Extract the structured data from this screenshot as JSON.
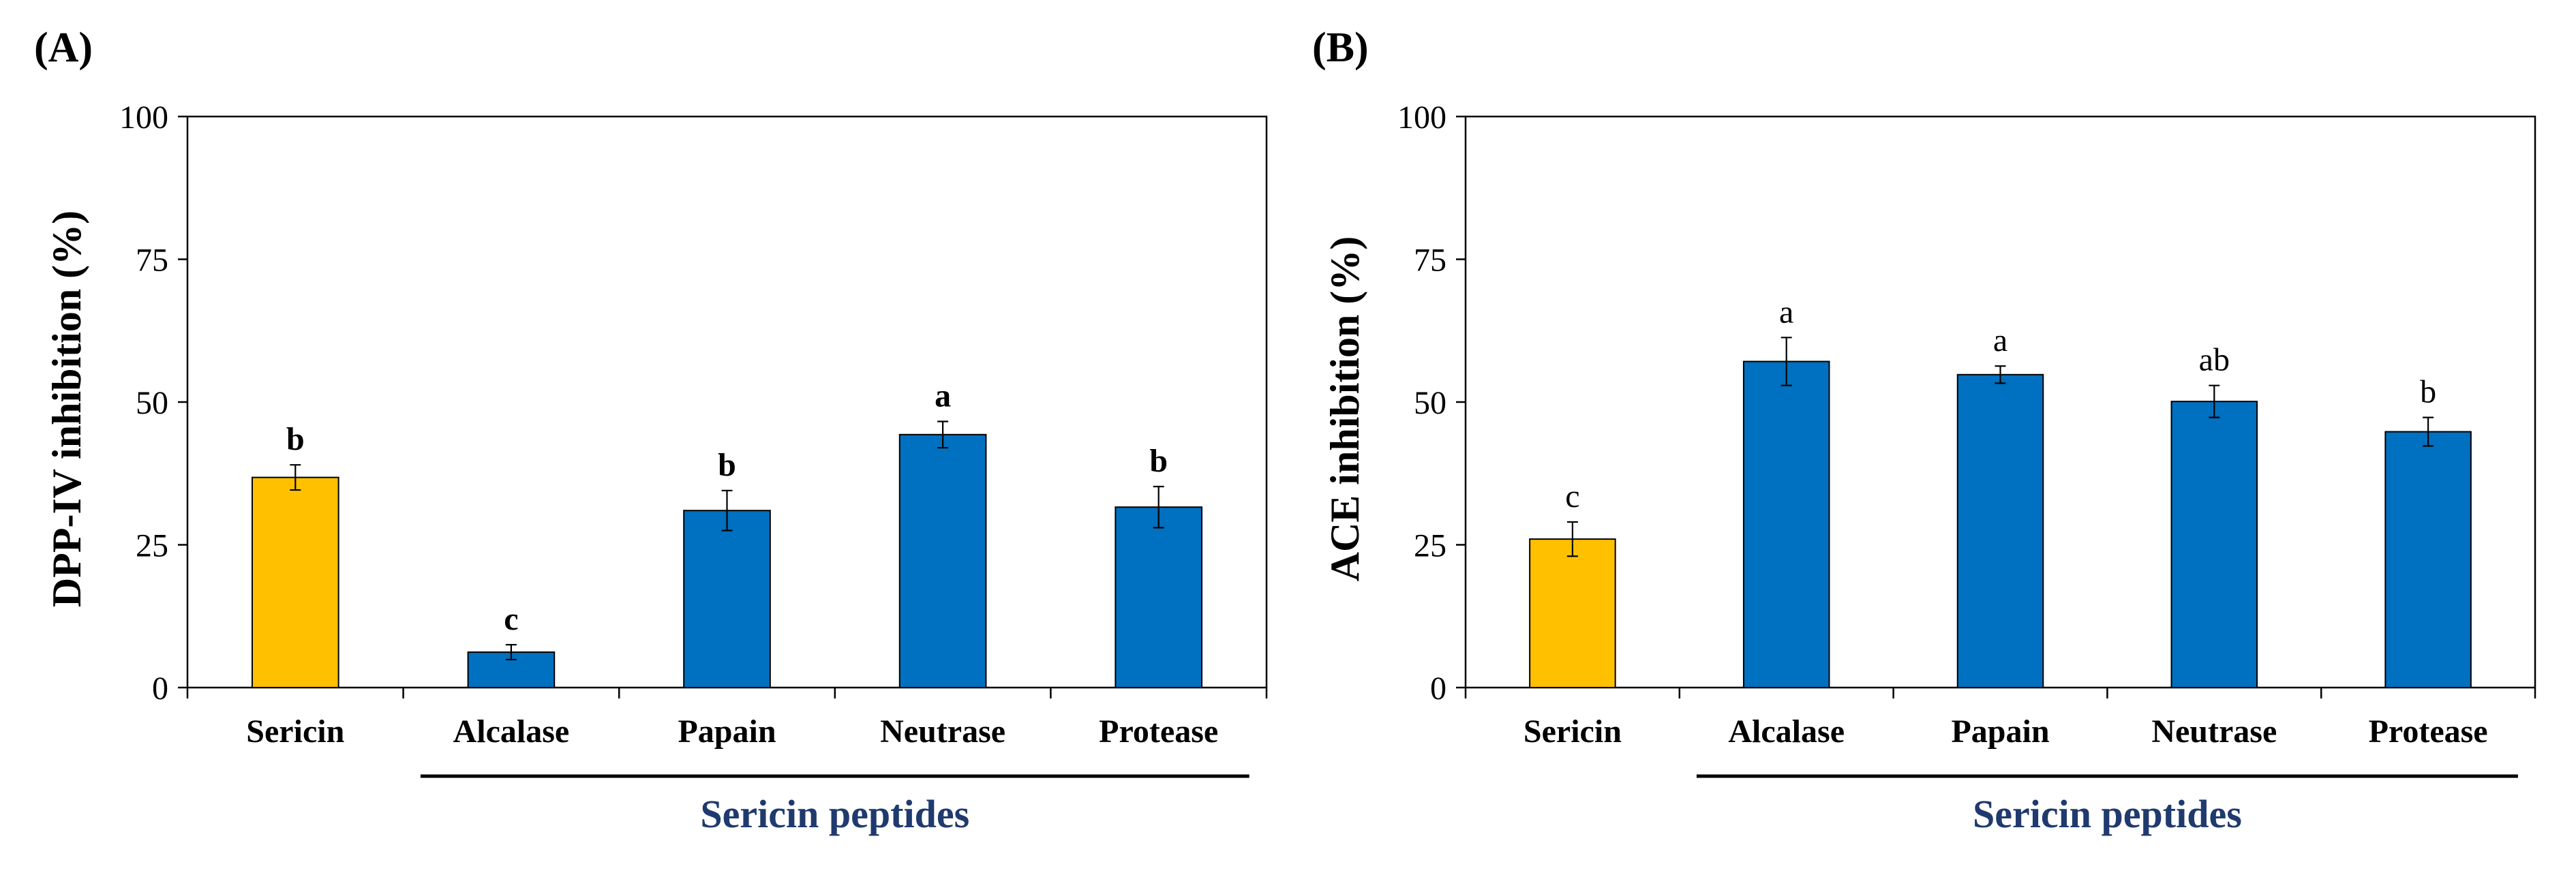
{
  "colors": {
    "sericin": "#FFC000",
    "peptides": "#0070C0",
    "group_label": "#1F3A6E",
    "axis": "#000000"
  },
  "chart_data": [
    {
      "type": "bar",
      "panel_label": "(A)",
      "categories": [
        "Sericin",
        "Alcalase",
        "Papain",
        "Neutrase",
        "Protease"
      ],
      "values": [
        36.8,
        6.2,
        31.0,
        44.3,
        31.6
      ],
      "errors": [
        2.2,
        1.3,
        3.5,
        2.3,
        3.6
      ],
      "significance": [
        "b",
        "c",
        "b",
        "a",
        "b"
      ],
      "sig_bold": true,
      "bar_colors": [
        "#FFC000",
        "#0070C0",
        "#0070C0",
        "#0070C0",
        "#0070C0"
      ],
      "ylabel": "DPP-IV inhibition (%)",
      "ylim": [
        0,
        100
      ],
      "yticks": [
        0,
        25,
        50,
        75,
        100
      ],
      "group_label": "Sericin peptides",
      "grid": false
    },
    {
      "type": "bar",
      "panel_label": "(B)",
      "categories": [
        "Sericin",
        "Alcalase",
        "Papain",
        "Neutrase",
        "Protease"
      ],
      "values": [
        26.0,
        57.1,
        54.8,
        50.1,
        44.8
      ],
      "errors": [
        3.0,
        4.2,
        1.5,
        2.8,
        2.5
      ],
      "significance": [
        "c",
        "a",
        "a",
        "ab",
        "b"
      ],
      "sig_bold": false,
      "bar_colors": [
        "#FFC000",
        "#0070C0",
        "#0070C0",
        "#0070C0",
        "#0070C0"
      ],
      "ylabel": "ACE inhibition (%)",
      "ylim": [
        0,
        100
      ],
      "yticks": [
        0,
        25,
        50,
        75,
        100
      ],
      "group_label": "Sericin peptides",
      "grid": false
    }
  ]
}
